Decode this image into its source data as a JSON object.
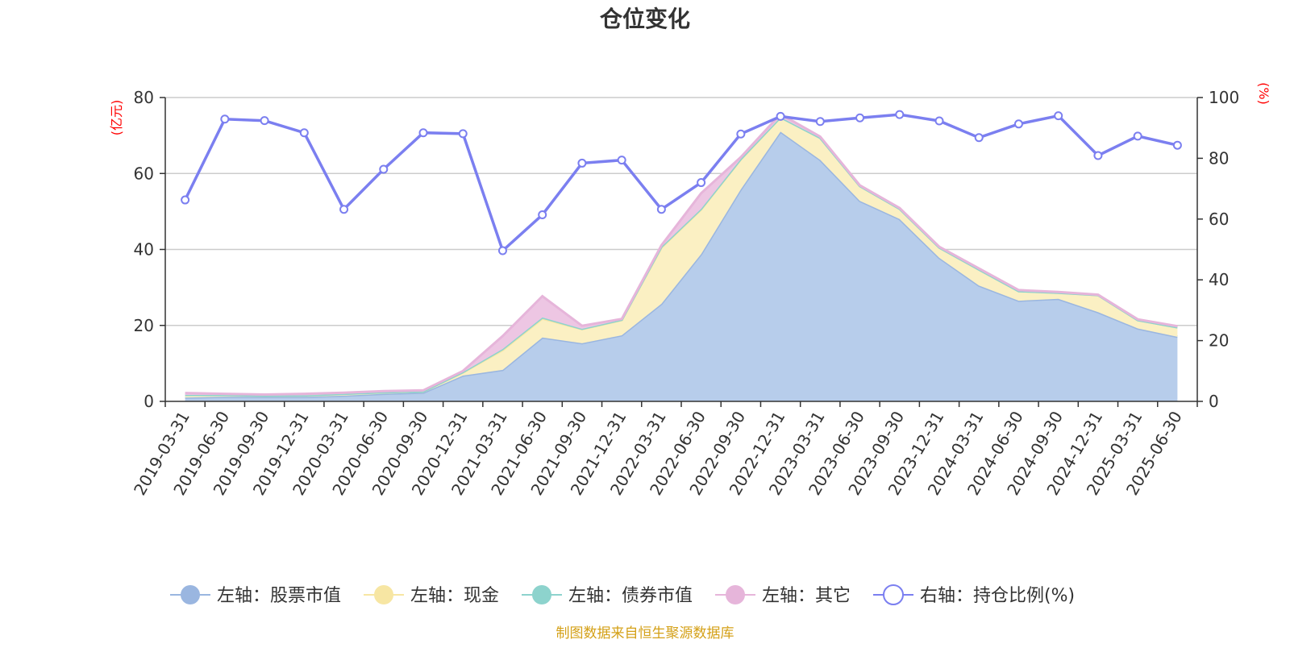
{
  "chart_data": {
    "type": "area",
    "title": "仓位变化",
    "left_unit": "(亿元)",
    "right_unit": "(%)",
    "source_note": "制图数据来自恒生聚源数据库",
    "left_ylim": [
      0,
      80
    ],
    "left_ticks": [
      "0",
      "20",
      "40",
      "60",
      "80"
    ],
    "right_ylim": [
      0,
      100
    ],
    "right_ticks": [
      "0",
      "20",
      "40",
      "60",
      "80",
      "100"
    ],
    "grid": true,
    "legend_position": "bottom",
    "categories": [
      "2019-03-31",
      "2019-06-30",
      "2019-09-30",
      "2019-12-31",
      "2020-03-31",
      "2020-06-30",
      "2020-09-30",
      "2020-12-31",
      "2021-03-31",
      "2021-06-30",
      "2021-09-30",
      "2021-12-31",
      "2022-03-31",
      "2022-06-30",
      "2022-09-30",
      "2022-12-31",
      "2023-03-31",
      "2023-06-30",
      "2023-09-30",
      "2023-12-31",
      "2024-03-31",
      "2024-06-30",
      "2024-09-30",
      "2024-12-31",
      "2025-03-31",
      "2025-06-30"
    ],
    "series": [
      {
        "name": "左轴：股票市值",
        "axis": "left",
        "color": "#9ab6e0",
        "fill": "#b7cdeb",
        "values": [
          1.0,
          1.2,
          1.2,
          1.2,
          1.5,
          2.0,
          2.3,
          6.8,
          8.3,
          16.8,
          15.3,
          17.4,
          25.7,
          38.8,
          55.8,
          71.0,
          63.6,
          52.8,
          48.0,
          37.8,
          30.5,
          26.5,
          27.0,
          23.5,
          19.2,
          17.0
        ]
      },
      {
        "name": "左轴：现金",
        "axis": "left",
        "color": "#f7e6a3",
        "fill": "#fbf0c3",
        "values": [
          0.7,
          0.5,
          0.3,
          0.4,
          0.5,
          0.4,
          0.3,
          0.8,
          5.2,
          5.0,
          3.7,
          4.0,
          14.8,
          11.7,
          7.9,
          3.8,
          5.8,
          3.9,
          2.7,
          2.7,
          4.2,
          2.5,
          1.6,
          4.5,
          2.2,
          2.5
        ]
      },
      {
        "name": "左轴：债券市值",
        "axis": "left",
        "color": "#8dd3cd",
        "fill": "#a9ded8",
        "values": [
          0,
          0,
          0,
          0,
          0,
          0,
          0,
          0.1,
          0.3,
          0.3,
          0.1,
          0.1,
          0.2,
          0.2,
          0.1,
          0,
          0,
          0,
          0,
          0,
          0,
          0,
          0,
          0,
          0,
          0
        ]
      },
      {
        "name": "左轴：其它",
        "axis": "left",
        "color": "#e6b5da",
        "fill": "#edc6e3",
        "values": [
          0.5,
          0.3,
          0.3,
          0.4,
          0.3,
          0.3,
          0.3,
          0.3,
          3.4,
          5.6,
          0.8,
          0.2,
          0.4,
          4.1,
          0.5,
          0.8,
          0.3,
          0.2,
          0.2,
          0.2,
          0.3,
          0.3,
          0.2,
          0.1,
          0.2,
          0.3
        ]
      },
      {
        "name": "右轴：持仓比例(%)",
        "axis": "right",
        "color": "#7b7ff0",
        "values": [
          66.3,
          92.9,
          92.4,
          88.4,
          63.2,
          76.4,
          88.4,
          88.1,
          49.6,
          61.4,
          78.4,
          79.4,
          63.2,
          72.0,
          88.0,
          93.8,
          92.1,
          93.3,
          94.4,
          92.3,
          86.8,
          91.3,
          94.0,
          80.9,
          87.3,
          84.3
        ]
      }
    ]
  }
}
